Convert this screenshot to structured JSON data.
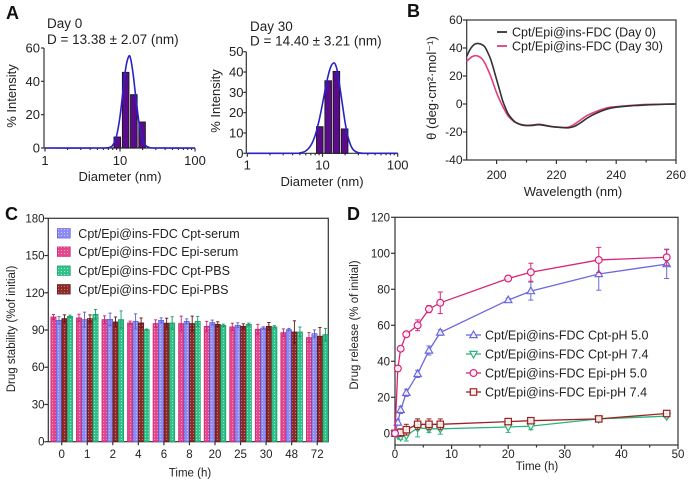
{
  "figure": {
    "panel_labels": [
      "A",
      "B",
      "C",
      "D"
    ]
  },
  "chart_data": [
    {
      "panel": "A",
      "type": "bar",
      "title": "Day 0",
      "subtitle": "D = 13.38 ± 2.07 (nm)",
      "xlabel": "Diameter (nm)",
      "ylabel": "% Intensity",
      "xscale": "log",
      "xlim": [
        1,
        100
      ],
      "ylim": [
        0,
        60
      ],
      "xticks": [
        1,
        10,
        100
      ],
      "yticks": [
        0,
        20,
        40,
        60
      ],
      "bars": {
        "x": [
          9.2,
          11.9,
          15.3,
          19.7
        ],
        "values": [
          6.6,
          45.4,
          32,
          15.6
        ]
      },
      "fit": {
        "x": [
          1,
          5,
          7,
          8,
          9,
          10,
          11,
          12,
          13.2,
          14,
          15,
          16,
          18,
          20,
          22,
          25,
          30,
          100
        ],
        "y": [
          0,
          0,
          0.2,
          1.7,
          7.3,
          18.9,
          34.8,
          48.7,
          55.2,
          52.6,
          44,
          33.1,
          14.6,
          5,
          1.5,
          0.2,
          0,
          0
        ]
      },
      "colors": {
        "bar": "#5a0b8b",
        "bar_edge": "#1a1a1a",
        "fit": "#2a22c4"
      }
    },
    {
      "panel": "A",
      "type": "bar",
      "title": "Day 30",
      "subtitle": "D = 14.40 ± 3.21 (nm)",
      "xlabel": "Diameter (nm)",
      "ylabel": "% Intensity",
      "xscale": "log",
      "xlim": [
        1,
        100
      ],
      "ylim": [
        0,
        50
      ],
      "xticks": [
        1,
        10,
        100
      ],
      "yticks": [
        0,
        10,
        20,
        30,
        40,
        50
      ],
      "bars": {
        "x": [
          9.2,
          11.9,
          15.3,
          19.7
        ],
        "values": [
          13.1,
          35.7,
          40.3,
          12
        ]
      },
      "fit": {
        "x": [
          1,
          4,
          5,
          6,
          7,
          8,
          9,
          10,
          11,
          12,
          13,
          14.2,
          15,
          16,
          18,
          20,
          22,
          25,
          30,
          40,
          100
        ],
        "y": [
          0,
          0,
          0.2,
          1.2,
          3.9,
          8.9,
          16.1,
          24.4,
          32.4,
          38.8,
          42.9,
          44.5,
          43.3,
          39.1,
          26.5,
          15.1,
          7.6,
          2.3,
          0.3,
          0,
          0
        ]
      },
      "colors": {
        "bar": "#5a0b8b",
        "bar_edge": "#1a1a1a",
        "fit": "#2a22c4"
      }
    },
    {
      "panel": "B",
      "type": "line",
      "xlabel": "Wavelength (nm)",
      "ylabel": "θ (deg·cm²·mol⁻¹)",
      "xlim": [
        190,
        260
      ],
      "ylim": [
        -40,
        60
      ],
      "xticks": [
        200,
        220,
        240,
        260
      ],
      "yticks": [
        -40,
        -20,
        0,
        20,
        40,
        60
      ],
      "legend": "top-right",
      "x": [
        190,
        191,
        192,
        193,
        194,
        195,
        196,
        197,
        198,
        199,
        200,
        201,
        202,
        203,
        204,
        206,
        208,
        210,
        212,
        214,
        216,
        218,
        220,
        222,
        224,
        226,
        228,
        230,
        232,
        234,
        236,
        238,
        240,
        245,
        250,
        255,
        260
      ],
      "series": [
        {
          "name": "Cpt/Epi@ins-FDC (Day 0)",
          "color": "#333333",
          "values": [
            34,
            38.5,
            41.5,
            43,
            43.2,
            42.5,
            41,
            37,
            32,
            25,
            17.5,
            10,
            2.5,
            -3,
            -7.5,
            -12.5,
            -14.7,
            -15.4,
            -15.3,
            -14.8,
            -15.3,
            -16,
            -16.5,
            -16.8,
            -17,
            -16,
            -13.5,
            -10.5,
            -8,
            -6,
            -4.3,
            -3,
            -2.3,
            -1.3,
            -0.7,
            -0.2,
            0
          ]
        },
        {
          "name": "Cpt/Epi@ins-FDC (Day 30)",
          "color": "#e23d80",
          "values": [
            30.5,
            32.5,
            34,
            34.5,
            34,
            32.5,
            29.5,
            25,
            20,
            14,
            8,
            3,
            -1.5,
            -5.5,
            -9,
            -12.8,
            -14.5,
            -15.2,
            -15,
            -14.5,
            -15,
            -16,
            -16.5,
            -16.8,
            -16.5,
            -14.5,
            -11.5,
            -8.5,
            -6.5,
            -4.8,
            -3.3,
            -2.3,
            -1.9,
            -1,
            -0.3,
            -0.2,
            0
          ]
        }
      ]
    },
    {
      "panel": "C",
      "type": "bar",
      "xlabel": "Time (h)",
      "ylabel": "Drug stability (%of initial)",
      "ylim": [
        0,
        180
      ],
      "yticks": [
        0,
        30,
        60,
        90,
        120,
        150,
        180
      ],
      "legend": "top-left",
      "categories": [
        "0",
        "1",
        "2",
        "4",
        "6",
        "8",
        "20",
        "25",
        "30",
        "48",
        "72"
      ],
      "series": [
        {
          "name": "Cpt/Epi@ins-FDC Cpt-serum",
          "color": "#8e8cf2",
          "edge": "#5d5bd6",
          "dot": "#c3c2fb",
          "values": [
            97.8,
            98.4,
            98.6,
            97,
            97.8,
            97,
            96,
            93.8,
            91.6,
            90.3,
            87.1
          ],
          "errors": [
            3,
            6,
            5,
            6,
            2,
            2,
            2,
            2,
            1,
            1,
            3
          ]
        },
        {
          "name": "Cpt/Epi@ins-FDC Epi-serum",
          "color": "#e3478e",
          "edge": "#c2246f",
          "dot": "#f39bc2",
          "values": [
            100.5,
            99.7,
            98.4,
            95.7,
            95.2,
            95.2,
            93,
            92.5,
            90.6,
            87.9,
            83.9
          ],
          "errors": [
            2,
            3,
            3,
            1.5,
            3,
            6,
            4,
            3,
            4,
            3,
            4
          ]
        },
        {
          "name": "Cpt/Epi@ins-FDC Cpt-PBS",
          "color": "#2fc28a",
          "edge": "#1d9a68",
          "dot": "#9ae6c7",
          "values": [
            101,
            102.6,
            98.4,
            90.3,
            95.7,
            97,
            93.8,
            94.6,
            92.5,
            88.4,
            86.3
          ],
          "errors": [
            1,
            4,
            7,
            0.5,
            5,
            4,
            1,
            1,
            1,
            4,
            5
          ]
        },
        {
          "name": "Cpt/Epi@ins-FDC Epi-PBS",
          "color": "#8e2a2a",
          "edge": "#5e1414",
          "dot": "#c97373",
          "values": [
            99.2,
            99.2,
            96.5,
            95.7,
            95.5,
            95.2,
            94.6,
            93,
            93,
            88.4,
            85
          ],
          "errors": [
            3,
            3,
            4,
            4,
            4,
            6,
            2,
            2,
            3,
            9,
            7
          ]
        }
      ]
    },
    {
      "panel": "D",
      "type": "line",
      "xlabel": "Time (h)",
      "ylabel": "Drug release (% of initial)",
      "xlim": [
        0,
        50
      ],
      "ylim": [
        -6.5,
        120
      ],
      "xticks": [
        0,
        10,
        20,
        30,
        40,
        50
      ],
      "yticks": [
        0,
        20,
        40,
        60,
        80,
        100,
        120
      ],
      "legend": "center-right",
      "x": [
        0,
        0.5,
        1,
        2,
        4,
        6,
        8,
        20,
        24,
        36,
        48
      ],
      "series": [
        {
          "name": "Cpt/Epi@ins-FDC Cpt-pH 5.0",
          "color": "#6b68dc",
          "marker": "triangle-up",
          "values": [
            0,
            6,
            13,
            22.5,
            33,
            46,
            56,
            74,
            79,
            88.5,
            94
          ],
          "errors": [
            0,
            1.5,
            2,
            2,
            2,
            2.5,
            1.5,
            1,
            5,
            9,
            8
          ]
        },
        {
          "name": "Cpt/Epi@ins-FDC Cpt-pH 7.4",
          "color": "#2db37c",
          "marker": "triangle-down",
          "values": [
            0,
            -1,
            -2,
            -1.3,
            3,
            2.5,
            2.5,
            3.5,
            4,
            8,
            9.5
          ],
          "errors": [
            0,
            1,
            1.5,
            3,
            5,
            2,
            3,
            3,
            2,
            1,
            1
          ]
        },
        {
          "name": "Cpt/Epi@ins-FDC Epi-pH 5.0",
          "color": "#d6267a",
          "marker": "circle",
          "values": [
            0,
            36,
            47,
            55,
            60,
            69,
            72.5,
            86,
            89.5,
            96.3,
            97.8
          ],
          "errors": [
            0,
            1.5,
            1,
            1,
            3,
            2,
            6,
            1,
            5,
            7,
            4.5
          ]
        },
        {
          "name": "Cpt/Epi@ins-FDC Epi-pH 7.4",
          "color": "#9c2222",
          "marker": "square",
          "values": [
            0,
            0,
            0.5,
            2,
            5,
            5,
            5,
            6.5,
            7,
            8,
            11
          ],
          "errors": [
            0,
            1,
            2,
            3,
            3,
            3,
            3,
            1.5,
            1,
            1,
            1.5
          ]
        }
      ]
    }
  ]
}
